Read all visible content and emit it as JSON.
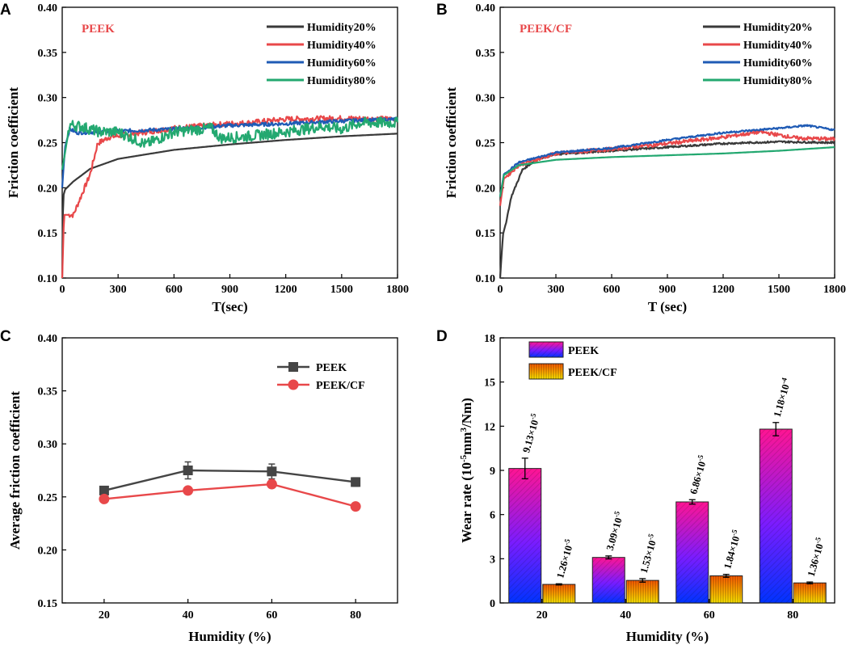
{
  "chart_data": [
    {
      "panel": "A",
      "type": "line",
      "title": "PEEK",
      "xlabel": "T(sec)",
      "ylabel": "Friction coefficient",
      "xlim": [
        0,
        1800
      ],
      "ylim": [
        0.1,
        0.4
      ],
      "xticks": [
        0,
        300,
        600,
        900,
        1200,
        1500,
        1800
      ],
      "yticks": [
        0.1,
        0.15,
        0.2,
        0.25,
        0.3,
        0.35,
        0.4
      ],
      "legend_position": "top-right",
      "series": [
        {
          "name": "Humidity20%",
          "color": "#3a3a3a",
          "noise": 0.0,
          "points": [
            [
              0,
              0.1
            ],
            [
              5,
              0.19
            ],
            [
              15,
              0.198
            ],
            [
              60,
              0.207
            ],
            [
              150,
              0.221
            ],
            [
              300,
              0.232
            ],
            [
              600,
              0.242
            ],
            [
              900,
              0.248
            ],
            [
              1200,
              0.253
            ],
            [
              1500,
              0.257
            ],
            [
              1800,
              0.26
            ]
          ]
        },
        {
          "name": "Humidity40%",
          "color": "#e8484a",
          "noise": 0.003,
          "points": [
            [
              0,
              0.1
            ],
            [
              10,
              0.17
            ],
            [
              60,
              0.17
            ],
            [
              100,
              0.19
            ],
            [
              150,
              0.215
            ],
            [
              190,
              0.249
            ],
            [
              250,
              0.256
            ],
            [
              600,
              0.266
            ],
            [
              900,
              0.271
            ],
            [
              1000,
              0.272
            ],
            [
              1200,
              0.276
            ],
            [
              1500,
              0.277
            ],
            [
              1800,
              0.276
            ]
          ]
        },
        {
          "name": "Humidity60%",
          "color": "#1f5bb5",
          "noise": 0.002,
          "points": [
            [
              0,
              0.2
            ],
            [
              15,
              0.245
            ],
            [
              40,
              0.265
            ],
            [
              80,
              0.261
            ],
            [
              200,
              0.262
            ],
            [
              600,
              0.265
            ],
            [
              900,
              0.269
            ],
            [
              1200,
              0.271
            ],
            [
              1500,
              0.274
            ],
            [
              1800,
              0.276
            ]
          ]
        },
        {
          "name": "Humidity80%",
          "color": "#23a870",
          "noise": 0.006,
          "points": [
            [
              0,
              0.22
            ],
            [
              20,
              0.245
            ],
            [
              40,
              0.27
            ],
            [
              100,
              0.268
            ],
            [
              200,
              0.262
            ],
            [
              300,
              0.262
            ],
            [
              450,
              0.248
            ],
            [
              600,
              0.262
            ],
            [
              800,
              0.266
            ],
            [
              850,
              0.255
            ],
            [
              1000,
              0.257
            ],
            [
              1200,
              0.262
            ],
            [
              1400,
              0.268
            ],
            [
              1500,
              0.265
            ],
            [
              1600,
              0.272
            ],
            [
              1800,
              0.272
            ]
          ]
        }
      ]
    },
    {
      "panel": "B",
      "type": "line",
      "title": "PEEK/CF",
      "xlabel": "T (sec)",
      "ylabel": "Friction coefficient",
      "xlim": [
        0,
        1800
      ],
      "ylim": [
        0.1,
        0.4
      ],
      "xticks": [
        0,
        300,
        600,
        900,
        1200,
        1500,
        1800
      ],
      "yticks": [
        0.1,
        0.15,
        0.2,
        0.25,
        0.3,
        0.35,
        0.4
      ],
      "legend_position": "top-right",
      "series": [
        {
          "name": "Humidity20%",
          "color": "#3a3a3a",
          "noise": 0.001,
          "points": [
            [
              0,
              0.1
            ],
            [
              15,
              0.148
            ],
            [
              30,
              0.16
            ],
            [
              60,
              0.19
            ],
            [
              120,
              0.22
            ],
            [
              200,
              0.232
            ],
            [
              300,
              0.237
            ],
            [
              600,
              0.241
            ],
            [
              900,
              0.245
            ],
            [
              1200,
              0.249
            ],
            [
              1500,
              0.251
            ],
            [
              1800,
              0.25
            ]
          ]
        },
        {
          "name": "Humidity40%",
          "color": "#e8484a",
          "noise": 0.002,
          "points": [
            [
              0,
              0.18
            ],
            [
              20,
              0.21
            ],
            [
              100,
              0.225
            ],
            [
              300,
              0.238
            ],
            [
              600,
              0.243
            ],
            [
              900,
              0.249
            ],
            [
              1200,
              0.256
            ],
            [
              1400,
              0.262
            ],
            [
              1600,
              0.255
            ],
            [
              1800,
              0.254
            ]
          ]
        },
        {
          "name": "Humidity60%",
          "color": "#1f5bb5",
          "noise": 0.001,
          "points": [
            [
              0,
              0.19
            ],
            [
              20,
              0.215
            ],
            [
              100,
              0.228
            ],
            [
              300,
              0.239
            ],
            [
              600,
              0.244
            ],
            [
              900,
              0.253
            ],
            [
              1200,
              0.261
            ],
            [
              1500,
              0.266
            ],
            [
              1650,
              0.269
            ],
            [
              1800,
              0.264
            ]
          ]
        },
        {
          "name": "Humidity80%",
          "color": "#23a870",
          "noise": 0.0,
          "points": [
            [
              0,
              0.19
            ],
            [
              20,
              0.214
            ],
            [
              100,
              0.225
            ],
            [
              300,
              0.231
            ],
            [
              600,
              0.234
            ],
            [
              900,
              0.236
            ],
            [
              1200,
              0.238
            ],
            [
              1500,
              0.241
            ],
            [
              1800,
              0.245
            ]
          ]
        }
      ]
    },
    {
      "panel": "C",
      "type": "line",
      "xlabel": "Humidity (%)",
      "ylabel": "Average friction coefficient",
      "xlim": [
        10,
        90
      ],
      "ylim": [
        0.15,
        0.4
      ],
      "xticks": [
        20,
        40,
        60,
        80
      ],
      "yticks": [
        0.15,
        0.2,
        0.25,
        0.3,
        0.35,
        0.4
      ],
      "legend_position": "top-right",
      "series": [
        {
          "name": "PEEK",
          "color": "#454545",
          "marker": "square",
          "x": [
            20,
            40,
            60,
            80
          ],
          "values": [
            0.256,
            0.275,
            0.274,
            0.264
          ],
          "errors": [
            0.003,
            0.008,
            0.007,
            0.004
          ]
        },
        {
          "name": "PEEK/CF",
          "color": "#e8484a",
          "marker": "circle",
          "x": [
            20,
            40,
            60,
            80
          ],
          "values": [
            0.248,
            0.256,
            0.262,
            0.241
          ],
          "errors": [
            0.002,
            0.002,
            0.003,
            0.002
          ]
        }
      ]
    },
    {
      "panel": "D",
      "type": "bar",
      "xlabel": "Humidity (%)",
      "ylabel_main": "Wear rate (10",
      "ylabel_exp1": "-5",
      "ylabel_mid": "mm",
      "ylabel_exp2": "3",
      "ylabel_end": "/Nm)",
      "ylim": [
        0,
        18
      ],
      "yticks": [
        0,
        3,
        6,
        9,
        12,
        15,
        18
      ],
      "categories": [
        "20",
        "40",
        "60",
        "80"
      ],
      "legend_position": "top-left",
      "series": [
        {
          "name": "PEEK",
          "values": [
            9.13,
            3.09,
            6.86,
            11.8
          ],
          "errors": [
            0.7,
            0.1,
            0.15,
            0.45
          ],
          "labels": [
            "9.13×10-5",
            "3.09×10-5",
            "6.86×10-5",
            "1.18×10-4"
          ],
          "colors": [
            "#ff1493",
            "#7a1cff",
            "#0033ff"
          ]
        },
        {
          "name": "PEEK/CF",
          "values": [
            1.26,
            1.53,
            1.84,
            1.36
          ],
          "errors": [
            0.04,
            0.12,
            0.1,
            0.06
          ],
          "labels": [
            "1.26×10-5",
            "1.53×10-5",
            "1.84×10-5",
            "1.36×10-5"
          ],
          "colors": [
            "#ff5a00",
            "#ffe800"
          ]
        }
      ]
    }
  ]
}
